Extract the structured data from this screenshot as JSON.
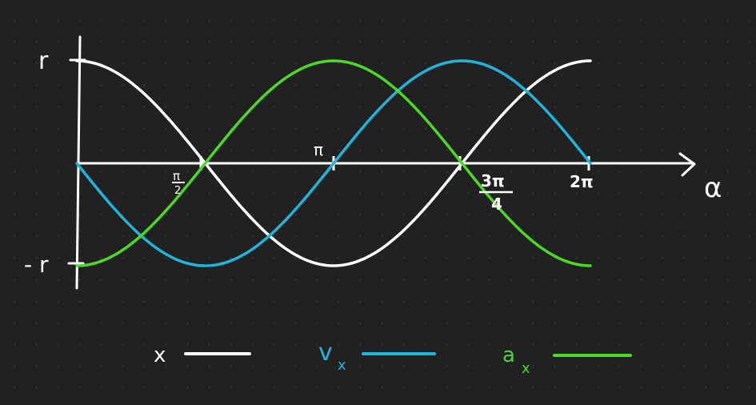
{
  "colors": {
    "background": "#212121",
    "axis": "#ffffff",
    "x": "#ffffff",
    "vx": "#1fb4dc",
    "ax": "#4cd926"
  },
  "labels": {
    "y_top": "r",
    "y_bottom": "- r",
    "x_axis": "α",
    "tick_pi_half_num": "π",
    "tick_pi_half_den": "2",
    "tick_pi": "π",
    "tick_3pi4_num": "3π",
    "tick_3pi4_den": "4",
    "tick_2pi": "2π"
  },
  "legend": {
    "x": "x",
    "vx": "v",
    "vx_sub": "x",
    "ax": "a",
    "ax_sub": "x"
  },
  "curves": {
    "x": {
      "function": "r·cos(α)",
      "range": [
        0,
        6.2832
      ]
    },
    "vx": {
      "function": "-r·sin(α)",
      "range": [
        0,
        6.2832
      ]
    },
    "ax": {
      "function": "-r·cos(α)",
      "range": [
        0,
        6.2832
      ]
    }
  }
}
